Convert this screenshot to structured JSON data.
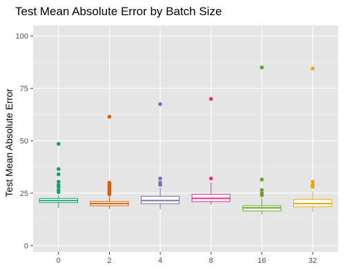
{
  "chart_data": {
    "type": "boxplot",
    "title": "Test Mean Absolute Error by Batch Size",
    "xlabel": "",
    "ylabel": "Test Mean Absolute Error",
    "ylim": [
      -3,
      105
    ],
    "yticks": [
      0,
      25,
      50,
      75,
      100
    ],
    "grid": true,
    "legend": "none",
    "categories": [
      "0",
      "2",
      "4",
      "8",
      "16",
      "32"
    ],
    "series": [
      {
        "category": "0",
        "color": "#1b9e77",
        "whisker_low": 18,
        "q1": 20.5,
        "median": 21.5,
        "q3": 22.5,
        "whisker_high": 24,
        "outliers": [
          25.5,
          26.5,
          28,
          29,
          30.5,
          34,
          36.5,
          48.5
        ]
      },
      {
        "category": "2",
        "color": "#d95f02",
        "whisker_low": 17.5,
        "q1": 19,
        "median": 20,
        "q3": 21,
        "whisker_high": 23.5,
        "outliers": [
          24.5,
          25.5,
          26.5,
          27.5,
          28.5,
          29.5,
          30,
          61.5
        ]
      },
      {
        "category": "4",
        "color": "#7570b3",
        "whisker_low": 17.5,
        "q1": 20,
        "median": 21.5,
        "q3": 23.5,
        "whisker_high": 27.5,
        "outliers": [
          29,
          30,
          32,
          67.5
        ]
      },
      {
        "category": "8",
        "color": "#e7298a",
        "whisker_low": 19.5,
        "q1": 21,
        "median": 22.5,
        "q3": 24.5,
        "whisker_high": 30,
        "outliers": [
          32,
          70
        ]
      },
      {
        "category": "16",
        "color": "#66a61e",
        "whisker_low": 15,
        "q1": 16.5,
        "median": 18,
        "q3": 19,
        "whisker_high": 22.5,
        "outliers": [
          24,
          25,
          26.5,
          31.5,
          85
        ]
      },
      {
        "category": "32",
        "color": "#e6ab02",
        "whisker_low": 16,
        "q1": 18.5,
        "median": 20,
        "q3": 22,
        "whisker_high": 26,
        "outliers": [
          28,
          29,
          30.5,
          84.5
        ]
      }
    ]
  }
}
